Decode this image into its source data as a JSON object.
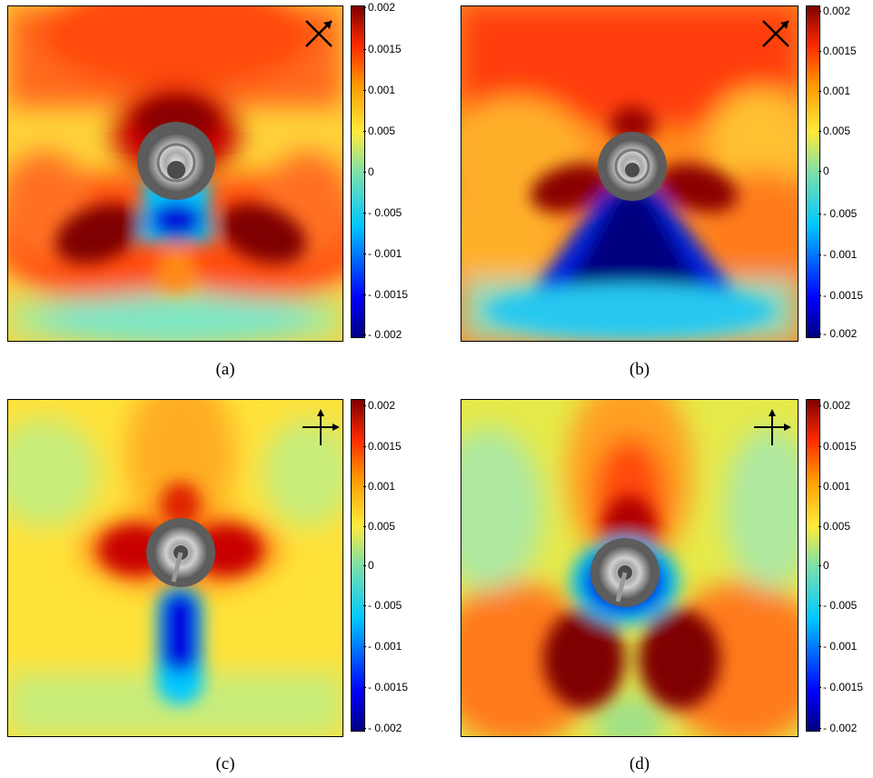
{
  "colorbar": {
    "colors": [
      "#00007f",
      "#0000ff",
      "#00c8ff",
      "#4fe8b8",
      "#ffeb3b",
      "#ff9a00",
      "#ff2a00",
      "#7f0000"
    ],
    "ticks": [
      "0.002",
      "0.0015",
      "0.001",
      "0.005",
      "0",
      "- 0.005",
      "- 0.001",
      "- 0.0015",
      "- 0.002"
    ]
  },
  "chart_data": [
    {
      "type": "heatmap",
      "caption": "(a)",
      "orientation_symbol": "diagonal-arrows-icon",
      "colorbar_ticks": [
        "0.002",
        "0.0015",
        "0.001",
        "0.005",
        "0",
        "- 0.005",
        "- 0.001",
        "- 0.0015",
        "- 0.002"
      ],
      "clim": [
        -0.002,
        0.002
      ]
    },
    {
      "type": "heatmap",
      "caption": "(b)",
      "orientation_symbol": "diagonal-arrows-icon",
      "colorbar_ticks": [
        "0.002",
        "0.0015",
        "0.001",
        "0.005",
        "0",
        "- 0.005",
        "- 0.001",
        "- 0.0015",
        "- 0.002"
      ],
      "clim": [
        -0.002,
        0.002
      ]
    },
    {
      "type": "heatmap",
      "caption": "(c)",
      "orientation_symbol": "cross-arrows-icon",
      "colorbar_ticks": [
        "0.002",
        "0.0015",
        "0.001",
        "0.005",
        "0",
        "- 0.005",
        "- 0.001",
        "- 0.0015",
        "- 0.002"
      ],
      "clim": [
        -0.002,
        0.002
      ]
    },
    {
      "type": "heatmap",
      "caption": "(d)",
      "orientation_symbol": "cross-arrows-icon",
      "colorbar_ticks": [
        "0.002",
        "0.0015",
        "0.001",
        "0.005",
        "0",
        "- 0.005",
        "- 0.001",
        "- 0.0015",
        "- 0.002"
      ],
      "clim": [
        -0.002,
        0.002
      ]
    }
  ]
}
